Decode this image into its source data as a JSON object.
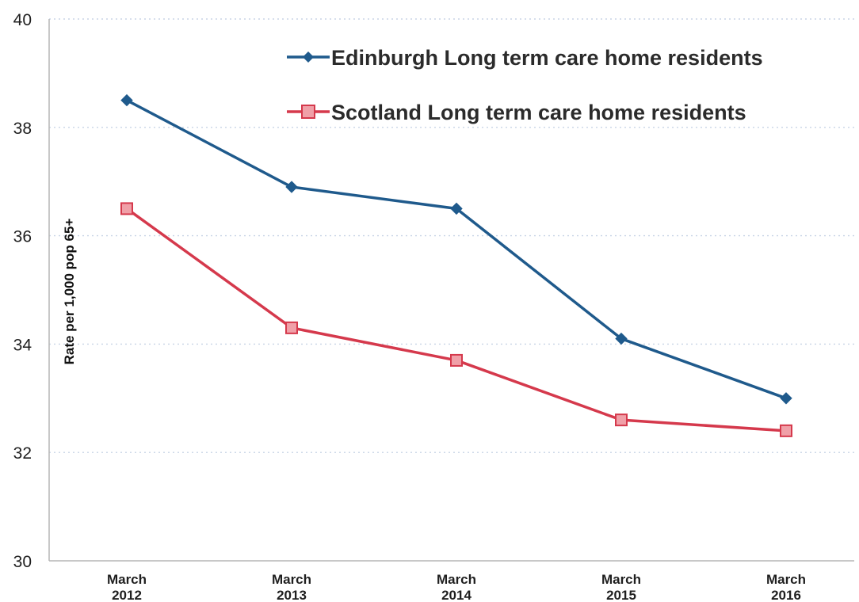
{
  "chart_data": {
    "type": "line",
    "categories": [
      [
        "March",
        "2012"
      ],
      [
        "March",
        "2013"
      ],
      [
        "March",
        "2014"
      ],
      [
        "March",
        "2015"
      ],
      [
        "March",
        "2016"
      ]
    ],
    "series": [
      {
        "name": "Edinburgh Long term care home residents",
        "values": [
          38.5,
          36.9,
          36.5,
          34.1,
          33.0
        ],
        "color": "#1f5a8c",
        "marker": "diamond"
      },
      {
        "name": "Scotland Long term care home residents",
        "values": [
          36.5,
          34.3,
          33.7,
          32.6,
          32.4
        ],
        "color": "#d5394c",
        "marker": "square",
        "marker_fill": "#f0a0a8"
      }
    ],
    "ylabel": "Rate per 1,000 pop 65+",
    "xlabel": "",
    "ylim": [
      30,
      40
    ],
    "yticks": [
      30,
      32,
      34,
      36,
      38,
      40
    ],
    "grid": "horizontal dotted",
    "legend_position": "top-right",
    "axis_color": "#b5b5b5",
    "grid_color": "#c8d4e6"
  }
}
